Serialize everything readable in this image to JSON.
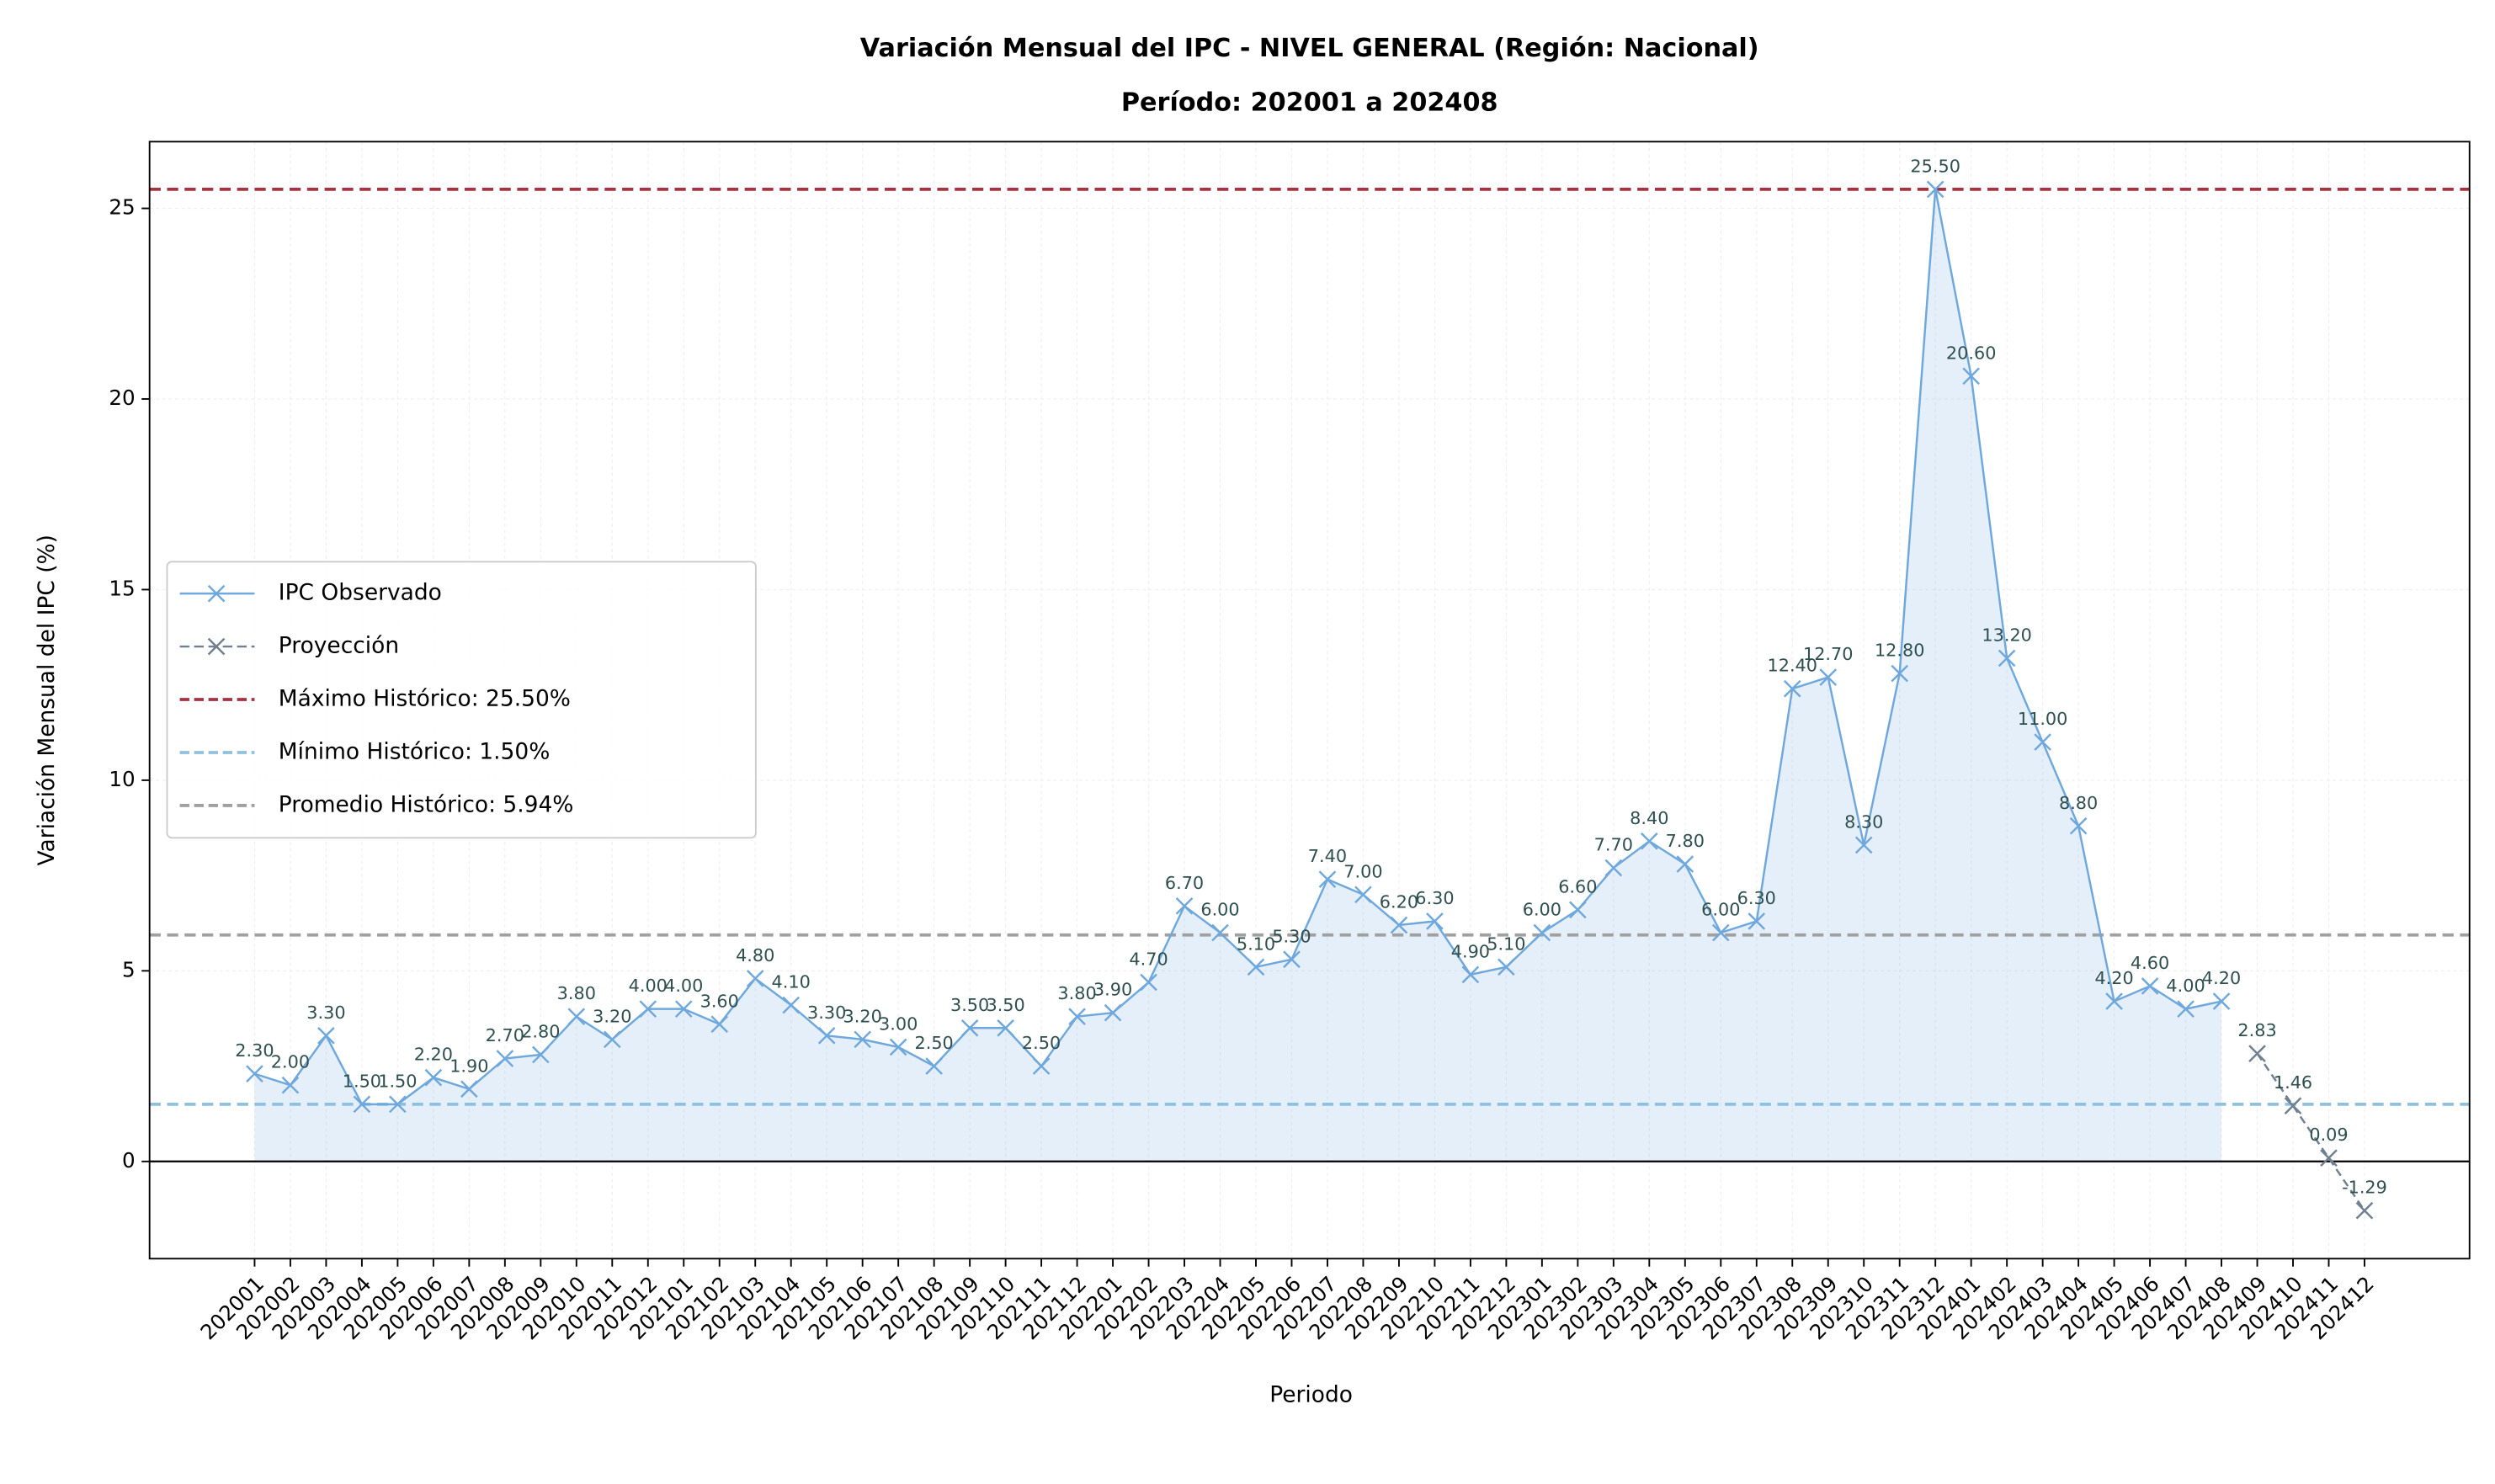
{
  "chart_data": {
    "type": "line",
    "title": "Variación Mensual del IPC - NIVEL GENERAL (Región: Nacional)",
    "subtitle": "Período: 202001 a 202408",
    "x_label": "Periodo",
    "y_label": "Variación Mensual del IPC (%)",
    "categories": [
      "202001",
      "202002",
      "202003",
      "202004",
      "202005",
      "202006",
      "202007",
      "202008",
      "202009",
      "202010",
      "202011",
      "202012",
      "202101",
      "202102",
      "202103",
      "202104",
      "202105",
      "202106",
      "202107",
      "202108",
      "202109",
      "202110",
      "202111",
      "202112",
      "202201",
      "202202",
      "202203",
      "202204",
      "202205",
      "202206",
      "202207",
      "202208",
      "202209",
      "202210",
      "202211",
      "202212",
      "202301",
      "202302",
      "202303",
      "202304",
      "202305",
      "202306",
      "202307",
      "202308",
      "202309",
      "202310",
      "202311",
      "202312",
      "202401",
      "202402",
      "202403",
      "202404",
      "202405",
      "202406",
      "202407",
      "202408",
      "202409",
      "202410",
      "202411",
      "202412"
    ],
    "series": [
      {
        "name": "IPC Observado",
        "color": "#6fa8dc",
        "dashed": false,
        "fill": true,
        "values": [
          2.3,
          2.0,
          3.3,
          1.5,
          1.5,
          2.2,
          1.9,
          2.7,
          2.8,
          3.8,
          3.2,
          4.0,
          4.0,
          3.6,
          4.8,
          4.1,
          3.3,
          3.2,
          3.0,
          2.5,
          3.5,
          3.5,
          2.5,
          3.8,
          3.9,
          4.7,
          6.7,
          6.0,
          5.1,
          5.3,
          7.4,
          7.0,
          6.2,
          6.3,
          4.9,
          5.1,
          6.0,
          6.6,
          7.7,
          8.4,
          7.8,
          6.0,
          6.3,
          12.4,
          12.7,
          8.3,
          12.8,
          25.5,
          20.6,
          13.2,
          11.0,
          8.8,
          4.2,
          4.6,
          4.0,
          4.2,
          null,
          null,
          null,
          null
        ],
        "value_labels": [
          "2.30",
          "2.00",
          "3.30",
          "1.50",
          "1.50",
          "2.20",
          "1.90",
          "2.70",
          "2.80",
          "3.80",
          "3.20",
          "4.00",
          "4.00",
          "3.60",
          "4.80",
          "4.10",
          "3.30",
          "3.20",
          "3.00",
          "2.50",
          "3.50",
          "3.50",
          "2.50",
          "3.80",
          "3.90",
          "4.70",
          "6.70",
          "6.00",
          "5.10",
          "5.30",
          "7.40",
          "7.00",
          "6.20",
          "6.30",
          "4.90",
          "5.10",
          "6.00",
          "6.60",
          "7.70",
          "8.40",
          "7.80",
          "6.00",
          "6.30",
          "12.40",
          "12.70",
          "8.30",
          "12.80",
          "25.50",
          "20.60",
          "13.20",
          "11.00",
          "8.80",
          "4.20",
          "4.60",
          "4.00",
          "4.20",
          null,
          null,
          null,
          null
        ]
      },
      {
        "name": "Proyección",
        "color": "#708090",
        "dashed": true,
        "fill": false,
        "values": [
          null,
          null,
          null,
          null,
          null,
          null,
          null,
          null,
          null,
          null,
          null,
          null,
          null,
          null,
          null,
          null,
          null,
          null,
          null,
          null,
          null,
          null,
          null,
          null,
          null,
          null,
          null,
          null,
          null,
          null,
          null,
          null,
          null,
          null,
          null,
          null,
          null,
          null,
          null,
          null,
          null,
          null,
          null,
          null,
          null,
          null,
          null,
          null,
          null,
          null,
          null,
          null,
          null,
          null,
          null,
          null,
          2.83,
          1.46,
          0.09,
          -1.29
        ],
        "value_labels": [
          null,
          null,
          null,
          null,
          null,
          null,
          null,
          null,
          null,
          null,
          null,
          null,
          null,
          null,
          null,
          null,
          null,
          null,
          null,
          null,
          null,
          null,
          null,
          null,
          null,
          null,
          null,
          null,
          null,
          null,
          null,
          null,
          null,
          null,
          null,
          null,
          null,
          null,
          null,
          null,
          null,
          null,
          null,
          null,
          null,
          null,
          null,
          null,
          null,
          null,
          null,
          null,
          null,
          null,
          null,
          null,
          "2.83",
          "1.46",
          "0.09",
          "-1.29"
        ]
      }
    ],
    "reference_lines": [
      {
        "name": "Máximo Histórico: 25.50%",
        "value": 25.5,
        "color": "#a83240"
      },
      {
        "name": "Mínimo Histórico: 1.50%",
        "value": 1.5,
        "color": "#8fc1de"
      },
      {
        "name": "Promedio Histórico: 5.94%",
        "value": 5.94,
        "color": "#a0a0a0"
      }
    ],
    "ylim": [
      -2.55,
      26.75
    ],
    "yticks": [
      0,
      5,
      10,
      15,
      20,
      25
    ],
    "grid": true,
    "legend": "center left"
  }
}
